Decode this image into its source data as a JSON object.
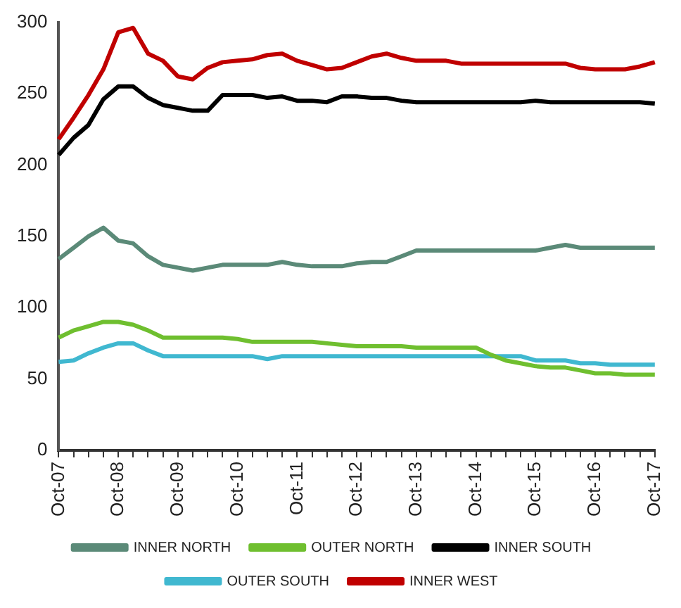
{
  "chart_data": {
    "type": "line",
    "categories": [
      "Oct-07",
      null,
      null,
      null,
      "Oct-08",
      null,
      null,
      null,
      "Oct-09",
      null,
      null,
      null,
      "Oct-10",
      null,
      null,
      null,
      "Oct-11",
      null,
      null,
      null,
      "Oct-12",
      null,
      null,
      null,
      "Oct-13",
      null,
      null,
      null,
      "Oct-14",
      null,
      null,
      null,
      "Oct-15",
      null,
      null,
      null,
      "Oct-16",
      null,
      null,
      null,
      "Oct-17"
    ],
    "series": [
      {
        "name": "INNER NORTH",
        "color": "#5b8a78",
        "values": [
          134,
          142,
          150,
          156,
          147,
          145,
          136,
          130,
          128,
          126,
          128,
          130,
          130,
          130,
          130,
          132,
          130,
          129,
          129,
          129,
          131,
          132,
          132,
          136,
          140,
          140,
          140,
          140,
          140,
          140,
          140,
          140,
          140,
          142,
          144,
          142,
          142,
          142,
          142,
          142,
          142
        ]
      },
      {
        "name": "OUTER NORTH",
        "color": "#6fbf2f",
        "values": [
          79,
          84,
          87,
          90,
          90,
          88,
          84,
          79,
          79,
          79,
          79,
          79,
          78,
          76,
          76,
          76,
          76,
          76,
          75,
          74,
          73,
          73,
          73,
          73,
          72,
          72,
          72,
          72,
          72,
          67,
          63,
          61,
          59,
          58,
          58,
          56,
          54,
          54,
          53,
          53,
          53
        ]
      },
      {
        "name": "INNER SOUTH",
        "color": "#000000",
        "values": [
          207,
          219,
          228,
          246,
          255,
          255,
          247,
          242,
          240,
          238,
          238,
          249,
          249,
          249,
          247,
          248,
          245,
          245,
          244,
          248,
          248,
          247,
          247,
          245,
          244,
          244,
          244,
          244,
          244,
          244,
          244,
          244,
          245,
          244,
          244,
          244,
          244,
          244,
          244,
          244,
          243
        ]
      },
      {
        "name": "OUTER SOUTH",
        "color": "#40b8d0",
        "values": [
          62,
          63,
          68,
          72,
          75,
          75,
          70,
          66,
          66,
          66,
          66,
          66,
          66,
          66,
          64,
          66,
          66,
          66,
          66,
          66,
          66,
          66,
          66,
          66,
          66,
          66,
          66,
          66,
          66,
          66,
          66,
          66,
          63,
          63,
          63,
          61,
          61,
          60,
          60,
          60,
          60
        ]
      },
      {
        "name": "INNER WEST",
        "color": "#c00000",
        "values": [
          218,
          233,
          249,
          267,
          293,
          296,
          278,
          273,
          262,
          260,
          268,
          272,
          273,
          274,
          277,
          278,
          273,
          270,
          267,
          268,
          272,
          276,
          278,
          275,
          273,
          273,
          273,
          271,
          271,
          271,
          271,
          271,
          271,
          271,
          271,
          268,
          267,
          267,
          267,
          269,
          272
        ]
      }
    ],
    "ylim": [
      0,
      300
    ],
    "yticks": [
      0,
      50,
      100,
      150,
      200,
      250,
      300
    ],
    "grid": false,
    "legend": "bottom",
    "marker": "none",
    "line_style": "solid"
  }
}
